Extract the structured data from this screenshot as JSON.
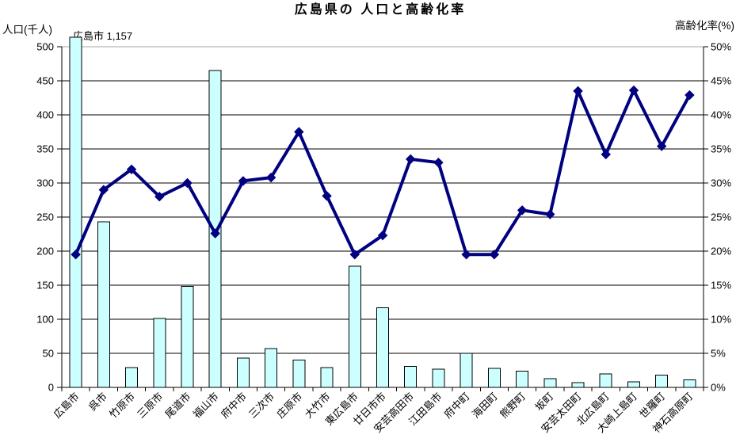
{
  "title": "広島県の 人口と高齢化率",
  "left_axis": {
    "label": "人口(千人)",
    "min": 0,
    "max": 500,
    "step": 50,
    "ticks": [
      "0",
      "50",
      "100",
      "150",
      "200",
      "250",
      "300",
      "350",
      "400",
      "450",
      "500"
    ]
  },
  "right_axis": {
    "label": "高齢化率(%)",
    "min": 0,
    "max": 50,
    "step": 5,
    "ticks": [
      "0%",
      "5%",
      "10%",
      "15%",
      "20%",
      "25%",
      "30%",
      "35%",
      "40%",
      "45%",
      "50%"
    ]
  },
  "annotation": "広島市 1,157",
  "colors": {
    "bar_fill": "#CCFFFF",
    "bar_stroke": "#000000",
    "line": "#000080",
    "marker": "#000080",
    "grid": "#000000",
    "grid_top": "#A6A6A6",
    "axis": "#000000",
    "background": "#FFFFFF"
  },
  "chart_data": {
    "type": "bar",
    "subtype": "combo-bar-line",
    "title": "広島県の 人口と高齢化率",
    "xlabel": "",
    "ylabel_left": "人口(千人)",
    "ylabel_right": "高齢化率(%)",
    "ylim_left": [
      0,
      500
    ],
    "ylim_right": [
      0,
      50
    ],
    "grid": true,
    "legend": "none",
    "annotation": "広島市 1,157",
    "categories": [
      "広島市",
      "呉市",
      "竹原市",
      "三原市",
      "尾道市",
      "福山市",
      "府中市",
      "三次市",
      "庄原市",
      "大竹市",
      "東広島市",
      "廿日市市",
      "安芸高田市",
      "江田島市",
      "府中町",
      "海田町",
      "熊野町",
      "坂町",
      "安芸太田町",
      "北広島町",
      "大崎上島町",
      "世羅町",
      "神石高原町"
    ],
    "series": [
      {
        "name": "人口(千人)",
        "type": "bar",
        "axis": "left",
        "values": [
          1157,
          243,
          29,
          101,
          148,
          465,
          43,
          57,
          40,
          29,
          178,
          117,
          31,
          27,
          50,
          28,
          24,
          13,
          7,
          20,
          8,
          18,
          11
        ]
      },
      {
        "name": "高齢化率(%)",
        "type": "line",
        "axis": "right",
        "values": [
          19.5,
          29.0,
          32.0,
          28.0,
          30.0,
          22.6,
          30.3,
          30.8,
          37.5,
          28.1,
          19.5,
          22.3,
          33.5,
          33.0,
          19.5,
          19.5,
          26.0,
          25.4,
          43.5,
          34.2,
          43.6,
          35.4,
          42.9
        ]
      }
    ]
  }
}
